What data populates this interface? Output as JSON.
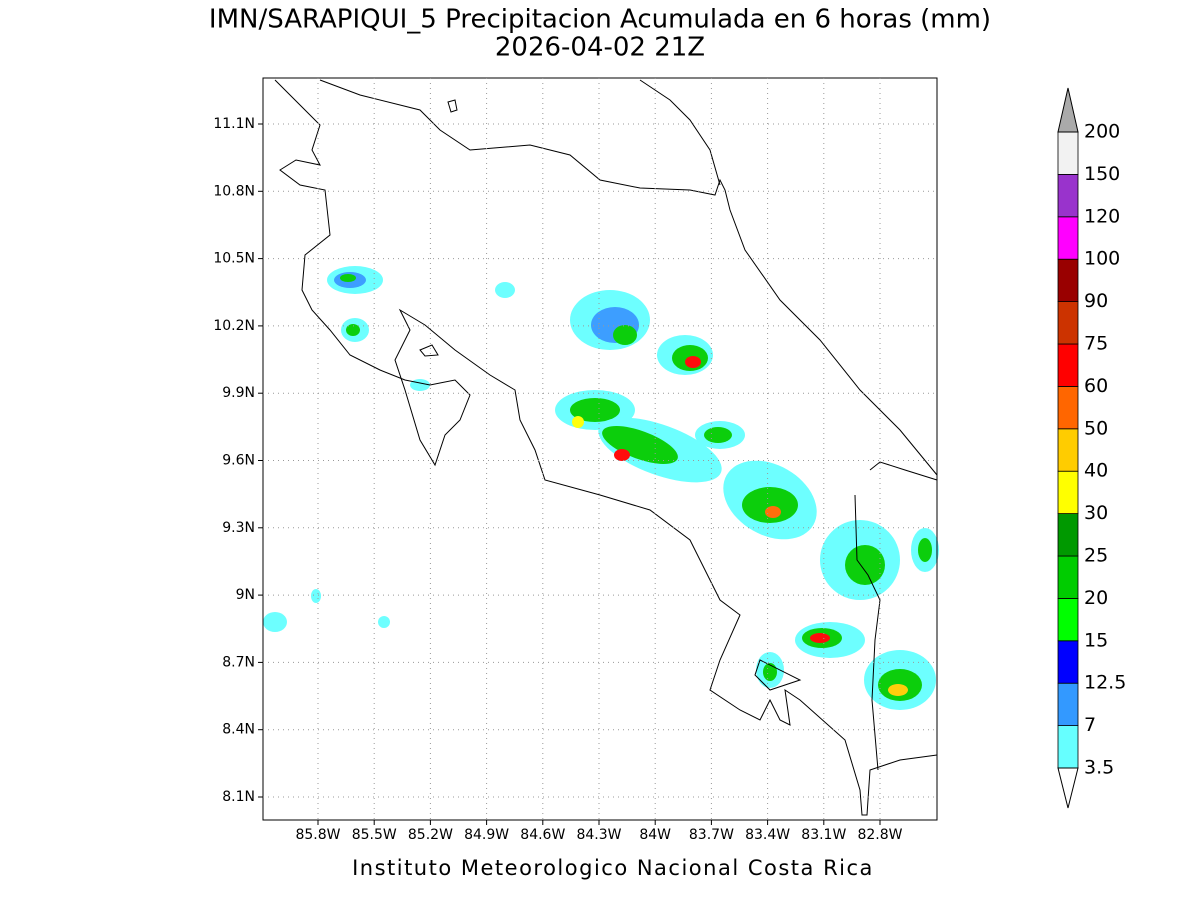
{
  "title": "IMN/SARAPIQUI_5 Precipitacion Acumulada en 6 horas (mm)",
  "subtitle": "2026-04-02 21Z",
  "footer": "Instituto Meteorologico Nacional Costa Rica",
  "map": {
    "lat_labels": [
      "11.1N",
      "10.8N",
      "10.5N",
      "10.2N",
      "9.9N",
      "9.6N",
      "9.3N",
      "9N",
      "8.7N",
      "8.4N",
      "8.1N"
    ],
    "lon_labels": [
      "85.8W",
      "85.5W",
      "85.2W",
      "84.9W",
      "84.6W",
      "84.3W",
      "84W",
      "83.7W",
      "83.4W",
      "83.1W",
      "82.8W"
    ]
  },
  "colorbar": {
    "levels": [
      3.5,
      7,
      12.5,
      15,
      20,
      25,
      30,
      40,
      50,
      60,
      75,
      90,
      100,
      120,
      150,
      200
    ],
    "colors": [
      "#66ffff",
      "#3399ff",
      "#0000ff",
      "#00ff00",
      "#00cc00",
      "#009900",
      "#ffff00",
      "#ffcc00",
      "#ff6600",
      "#ff0000",
      "#cc3300",
      "#990000",
      "#ff00ff",
      "#9933cc",
      "#f2f2f2"
    ],
    "over_color": "#aaaaaa",
    "under_color": "#ffffff"
  }
}
